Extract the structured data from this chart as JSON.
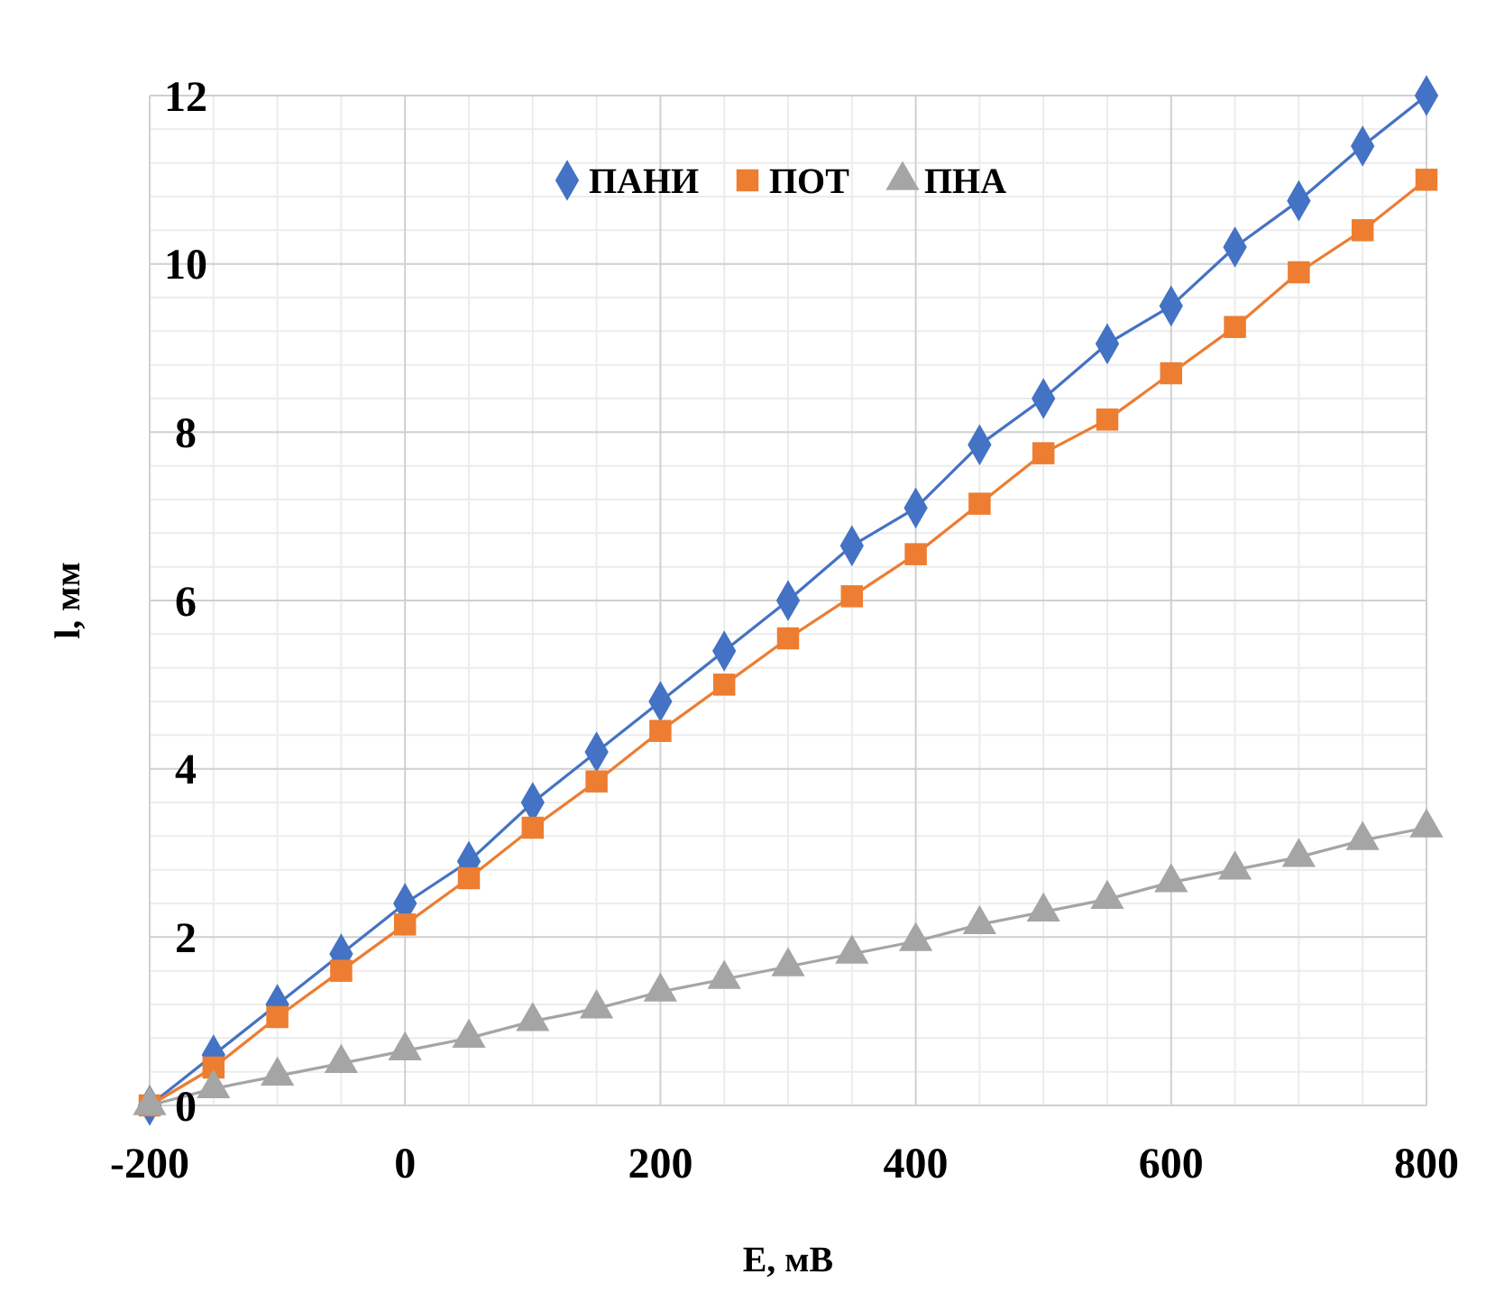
{
  "chart_data": {
    "type": "line",
    "xlabel": "E, мВ",
    "ylabel": "l, мм",
    "x": [
      -200,
      -150,
      -100,
      -50,
      0,
      50,
      100,
      150,
      200,
      250,
      300,
      350,
      400,
      450,
      500,
      550,
      600,
      650,
      700,
      750,
      800
    ],
    "series": [
      {
        "name": "ПАНИ",
        "color": "#4472c4",
        "marker": "diamond",
        "values": [
          0,
          0.6,
          1.2,
          1.8,
          2.4,
          2.9,
          3.6,
          4.2,
          4.8,
          5.4,
          6.0,
          6.65,
          7.1,
          7.85,
          8.4,
          9.05,
          9.5,
          10.2,
          10.75,
          11.4,
          12.0
        ]
      },
      {
        "name": "ПОТ",
        "color": "#ed7d31",
        "marker": "square",
        "values": [
          0,
          0.45,
          1.05,
          1.6,
          2.15,
          2.7,
          3.3,
          3.85,
          4.45,
          5.0,
          5.55,
          6.05,
          6.55,
          7.15,
          7.75,
          8.15,
          8.7,
          9.25,
          9.9,
          10.4,
          11.0
        ]
      },
      {
        "name": "ПНА",
        "color": "#a5a5a5",
        "marker": "triangle",
        "values": [
          0,
          0.2,
          0.35,
          0.5,
          0.65,
          0.8,
          1.0,
          1.15,
          1.35,
          1.5,
          1.65,
          1.8,
          1.95,
          2.15,
          2.3,
          2.45,
          2.65,
          2.8,
          2.95,
          3.15,
          3.3
        ]
      }
    ],
    "xlim": [
      -200,
      800
    ],
    "xticks": [
      -200,
      0,
      200,
      400,
      600,
      800
    ],
    "ylim": [
      0,
      12
    ],
    "yticks": [
      0,
      2,
      4,
      6,
      8,
      10,
      12
    ],
    "grid": true,
    "legend": "top"
  }
}
